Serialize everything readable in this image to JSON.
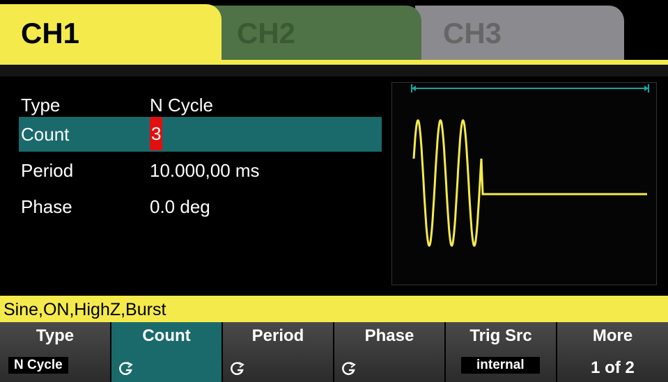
{
  "tabs": [
    "CH1",
    "CH2",
    "CH3"
  ],
  "params": [
    {
      "label": "Type",
      "value": "N Cycle"
    },
    {
      "label": "Count",
      "value": "3"
    },
    {
      "label": "Period",
      "value": "10.000,00 ms"
    },
    {
      "label": "Phase",
      "value": "0.0 deg"
    }
  ],
  "status": "Sine,ON,HighZ,Burst",
  "softkeys": [
    {
      "label": "Type",
      "sub": "N Cycle"
    },
    {
      "label": "Count"
    },
    {
      "label": "Period"
    },
    {
      "label": "Phase"
    },
    {
      "label": "Trig Src",
      "sub": "internal"
    },
    {
      "label": "More",
      "sub": "1 of 2"
    }
  ]
}
